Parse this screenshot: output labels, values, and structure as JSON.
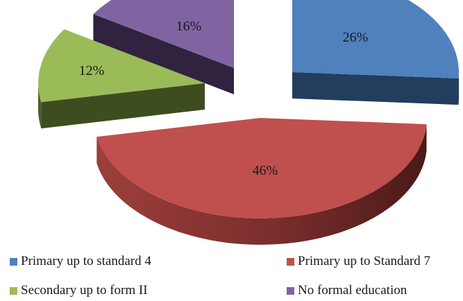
{
  "chart_data": {
    "type": "pie",
    "style": "3d-exploded",
    "title": "",
    "legend_position": "bottom",
    "slices": [
      {
        "key": "std4",
        "label": "Primary up to standard 4",
        "value": 26,
        "display": "26%",
        "color": "#4F81BD"
      },
      {
        "key": "std7",
        "label": "Primary up to Standard 7",
        "value": 46,
        "display": "46%",
        "color": "#C0504D"
      },
      {
        "key": "form2",
        "label": "Secondary up to form II",
        "value": 12,
        "display": "12%",
        "color": "#9BBB59"
      },
      {
        "key": "none",
        "label": "No formal education",
        "value": 16,
        "display": "16%",
        "color": "#8064A2"
      }
    ]
  }
}
